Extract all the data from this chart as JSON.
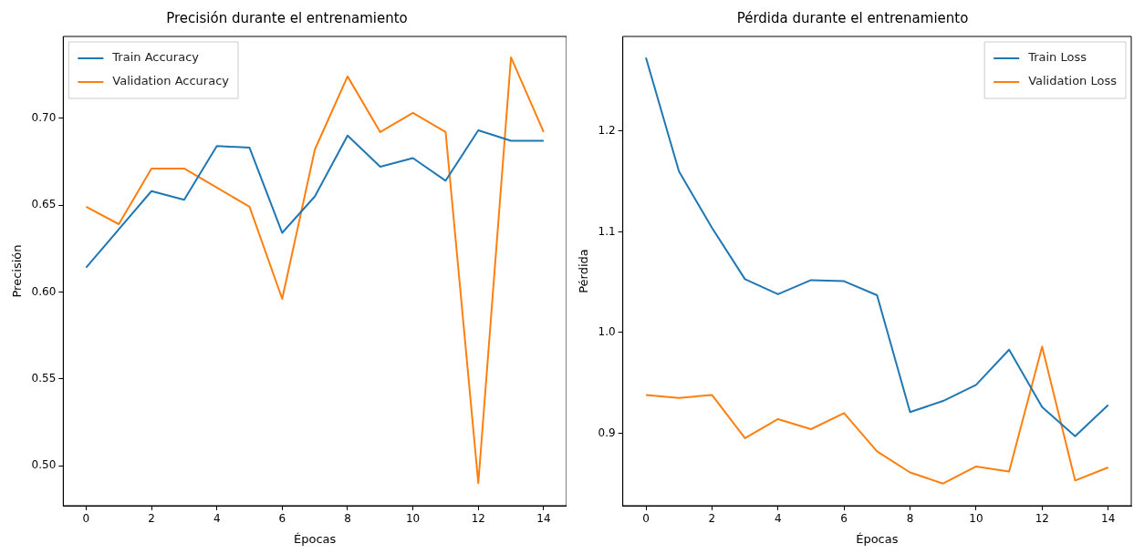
{
  "chart_data": [
    {
      "type": "line",
      "title": "Precisión durante el entrenamiento",
      "xlabel": "Épocas",
      "ylabel": "Precisión",
      "x": [
        0,
        1,
        2,
        3,
        4,
        5,
        6,
        7,
        8,
        9,
        10,
        11,
        12,
        13,
        14
      ],
      "series": [
        {
          "name": "Train Accuracy",
          "color": "#1f77b4",
          "values": [
            0.614,
            0.636,
            0.658,
            0.653,
            0.684,
            0.683,
            0.634,
            0.655,
            0.69,
            0.672,
            0.677,
            0.664,
            0.693,
            0.687,
            0.687
          ]
        },
        {
          "name": "Validation Accuracy",
          "color": "#ff7f0e",
          "values": [
            0.649,
            0.639,
            0.671,
            0.671,
            0.66,
            0.649,
            0.596,
            0.682,
            0.724,
            0.692,
            0.703,
            0.692,
            0.49,
            0.735,
            0.692
          ]
        }
      ],
      "xlim": [
        -0.7,
        14.7
      ],
      "xticks": [
        0,
        2,
        4,
        6,
        8,
        10,
        12,
        14
      ],
      "ylim": [
        0.477,
        0.747
      ],
      "yticks": [
        {
          "value": 0.5,
          "label": "0.50"
        },
        {
          "value": 0.55,
          "label": "0.55"
        },
        {
          "value": 0.6,
          "label": "0.60"
        },
        {
          "value": 0.65,
          "label": "0.65"
        },
        {
          "value": 0.7,
          "label": "0.70"
        }
      ],
      "grid": false,
      "legend": "top left",
      "marker": "none",
      "line_style": "solid"
    },
    {
      "type": "line",
      "title": "Pérdida durante el entrenamiento",
      "xlabel": "Épocas",
      "ylabel": "Pérdida",
      "x": [
        0,
        1,
        2,
        3,
        4,
        5,
        6,
        7,
        8,
        9,
        10,
        11,
        12,
        13,
        14
      ],
      "series": [
        {
          "name": "Train Loss",
          "color": "#1f77b4",
          "values": [
            1.273,
            1.16,
            1.104,
            1.053,
            1.038,
            1.052,
            1.051,
            1.037,
            0.921,
            0.932,
            0.948,
            0.983,
            0.926,
            0.897,
            0.928
          ]
        },
        {
          "name": "Validation Loss",
          "color": "#ff7f0e",
          "values": [
            0.938,
            0.935,
            0.938,
            0.895,
            0.914,
            0.904,
            0.92,
            0.882,
            0.861,
            0.85,
            0.867,
            0.862,
            0.986,
            0.853,
            0.866
          ]
        }
      ],
      "xlim": [
        -0.7,
        14.7
      ],
      "xticks": [
        0,
        2,
        4,
        6,
        8,
        10,
        12,
        14
      ],
      "ylim": [
        0.828,
        1.294
      ],
      "yticks": [
        {
          "value": 0.9,
          "label": "0.9"
        },
        {
          "value": 1.0,
          "label": "1.0"
        },
        {
          "value": 1.1,
          "label": "1.1"
        },
        {
          "value": 1.2,
          "label": "1.2"
        }
      ],
      "grid": false,
      "legend": "top right",
      "marker": "none",
      "line_style": "solid"
    }
  ]
}
